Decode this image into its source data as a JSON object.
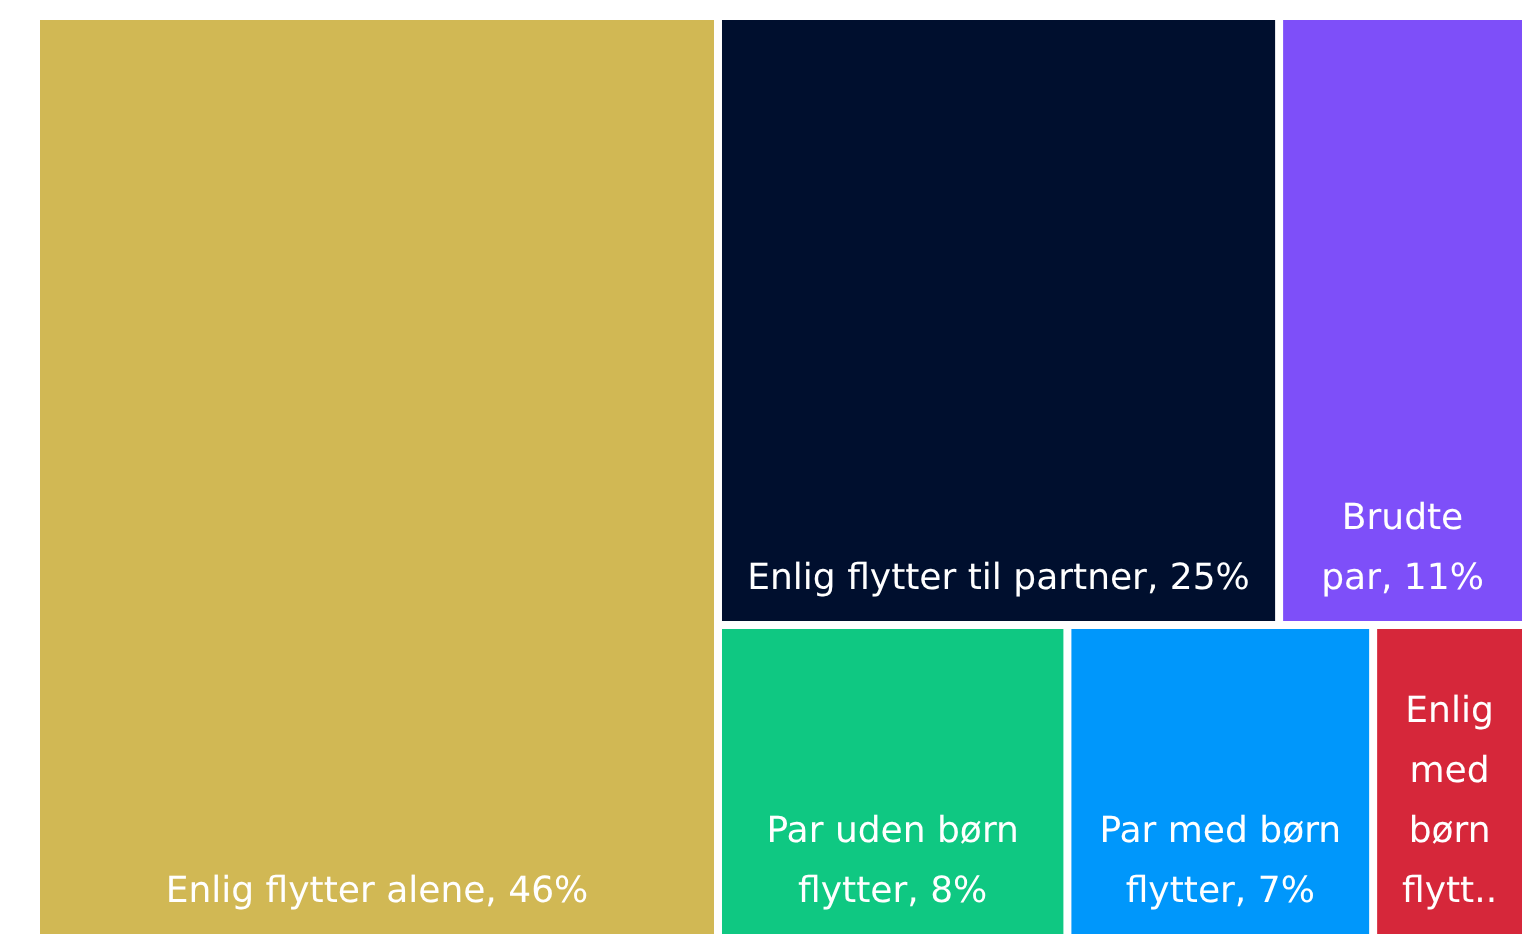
{
  "chart_data": {
    "type": "other",
    "categories": [
      "Enlig flytter alene",
      "Enlig flytter til partner",
      "Brudte par",
      "Par uden børn flytter",
      "Par med børn flytter",
      "Enlig med børn flytt.."
    ],
    "values": [
      46,
      25,
      11,
      8,
      7,
      null
    ],
    "value_labels": [
      ", 46%",
      ", 25%",
      ", 11%",
      ", 8%",
      ", 7%",
      null
    ],
    "colors": [
      "#d1b854",
      "#000f2e",
      "#7e4ff9",
      "#0fc882",
      "#0097fb",
      "#d6273a"
    ]
  }
}
